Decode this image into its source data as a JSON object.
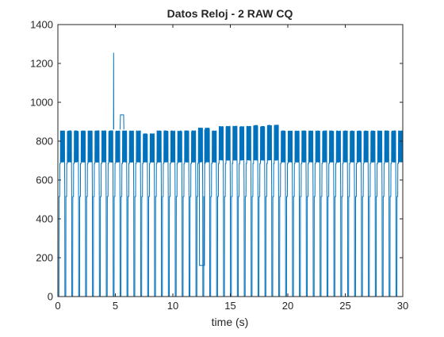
{
  "chart_data": {
    "type": "line",
    "title": "Datos Reloj - 2 RAW CQ",
    "xlabel": "time (s)",
    "ylabel": "",
    "xlim": [
      0,
      30
    ],
    "ylim": [
      0,
      1400
    ],
    "xticks": [
      0,
      5,
      10,
      15,
      20,
      25,
      30
    ],
    "xtick_labels": [
      "0",
      "5",
      "10",
      "15",
      "20",
      "25",
      "30"
    ],
    "yticks": [
      0,
      200,
      400,
      600,
      800,
      1000,
      1200,
      1400
    ],
    "ytick_labels": [
      "0",
      "200",
      "400",
      "600",
      "800",
      "1000",
      "1200",
      "1400"
    ],
    "grid": false,
    "legend": false,
    "series": [
      {
        "color": "#0072bd",
        "description_values": {
          "pulse_period_s": 0.6,
          "baseline_value": 0,
          "lower_step_value": 515,
          "mid_plateau_value": 685,
          "oscillation_high_typical": 855,
          "oscillation_low_typical": 690
        },
        "notable_points": [
          {
            "x": 4.85,
            "y": 1255
          },
          {
            "x": 5.5,
            "y": 935
          },
          {
            "x": 12.5,
            "y": 160
          },
          {
            "x": 16.6,
            "y": 890
          }
        ]
      }
    ]
  }
}
